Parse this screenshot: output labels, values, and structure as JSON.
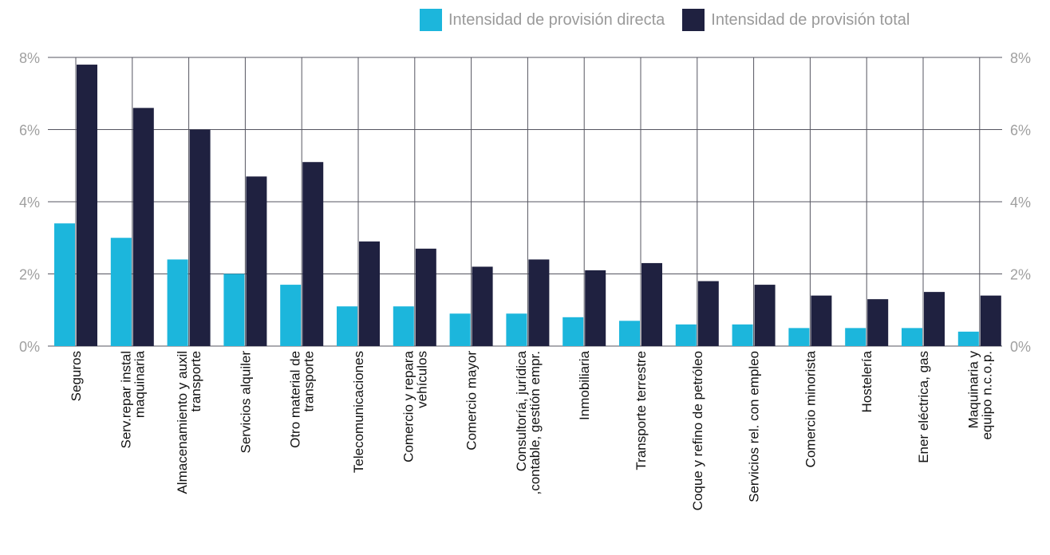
{
  "colors": {
    "direct": "#1cb6dc",
    "total": "#1f2140",
    "grid": "#555560",
    "axis_text": "#a0a0a0",
    "category_text": "#111111"
  },
  "legend": {
    "direct_label": "Intensidad de provisión directa",
    "total_label": "Intensidad de provisión total"
  },
  "chart_data": {
    "type": "bar",
    "categories": [
      [
        "Seguros"
      ],
      [
        "Serv.repar instal",
        "maquinaria"
      ],
      [
        "Almacenamiento y auxil",
        "transporte"
      ],
      [
        "Servicios alquiler"
      ],
      [
        "Otro material de",
        "transporte"
      ],
      [
        "Telecomunicaciones"
      ],
      [
        "Comercio y repara",
        "vehículos"
      ],
      [
        "Comercio mayor"
      ],
      [
        "Consultoría, jurídica",
        ",contable, gestión empr."
      ],
      [
        "Inmobiliaria"
      ],
      [
        "Transporte terrestre"
      ],
      [
        "Coque y refino de petróleo"
      ],
      [
        "Servicios rel. con empleo"
      ],
      [
        "Comercio minorista"
      ],
      [
        "Hostelería"
      ],
      [
        "Ener eléctrica, gas"
      ],
      [
        "Maquinaria y",
        "equipo n.c.o.p."
      ]
    ],
    "series": [
      {
        "name": "Intensidad de provisión directa",
        "values": [
          3.4,
          3.0,
          2.4,
          2.0,
          1.7,
          1.1,
          1.1,
          0.9,
          0.9,
          0.8,
          0.7,
          0.6,
          0.6,
          0.5,
          0.5,
          0.5,
          0.4
        ]
      },
      {
        "name": "Intensidad de provisión total",
        "values": [
          7.8,
          6.6,
          6.0,
          4.7,
          5.1,
          2.9,
          2.7,
          2.2,
          2.4,
          2.1,
          2.3,
          1.8,
          1.7,
          1.4,
          1.3,
          1.5,
          1.4
        ]
      }
    ],
    "y_ticks": [
      0,
      2,
      4,
      6,
      8
    ],
    "y_tick_labels": [
      "0%",
      "2%",
      "4%",
      "6%",
      "8%"
    ],
    "ylim": [
      0,
      8
    ],
    "grid": true,
    "legend_position": "top-right"
  }
}
